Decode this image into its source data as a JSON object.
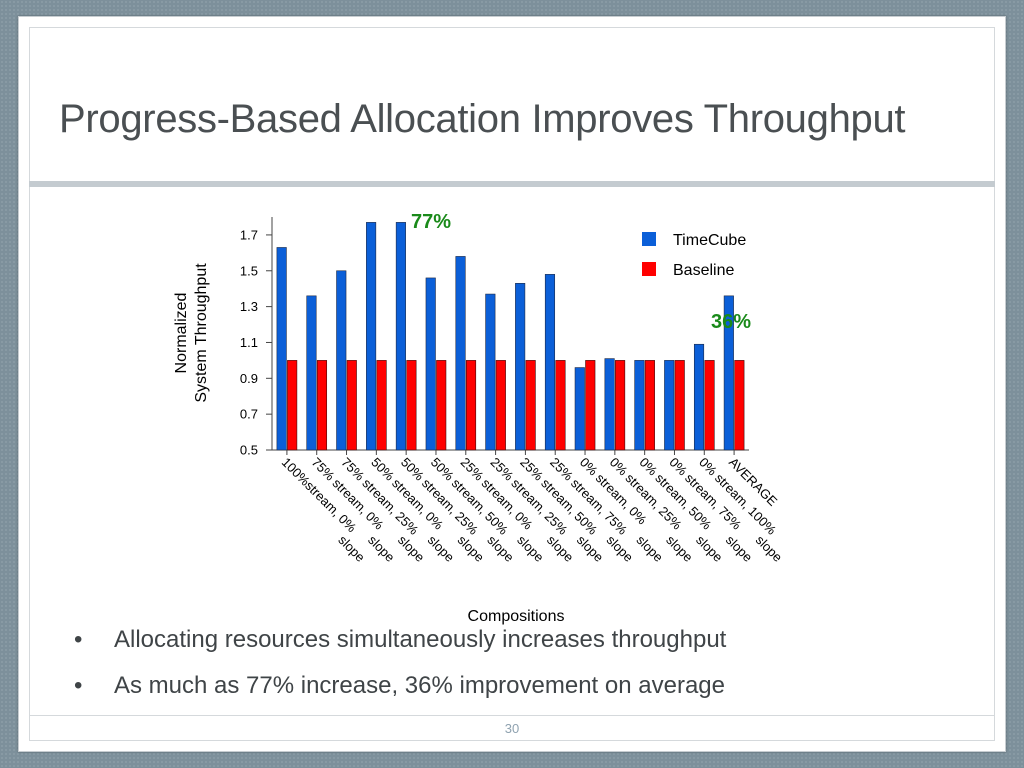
{
  "slide": {
    "title": "Progress-Based Allocation Improves Throughput",
    "bullets": [
      "Allocating resources simultaneously increases throughput",
      "As much as 77% increase, 36% improvement on average"
    ],
    "bullet_marker": "•",
    "page_number": "30"
  },
  "chart_data": {
    "type": "bar",
    "categories": [
      "100%stream, 0% slope",
      "75% stream, 0% slope",
      "75% stream, 25% slope",
      "50% stream, 0% slope",
      "50% stream, 25% slope",
      "50% stream, 50% slope",
      "25% stream, 0% slope",
      "25% stream, 25% slope",
      "25% stream, 50% slope",
      "25% stream, 75% slope",
      "0% stream, 0% slope",
      "0% stream, 25% slope",
      "0% stream, 50% slope",
      "0% stream, 75% slope",
      "0% stream, 100% slope",
      "AVERAGE"
    ],
    "series": [
      {
        "name": "TimeCube",
        "color": "#0b5fd8",
        "values": [
          1.63,
          1.36,
          1.5,
          1.77,
          1.77,
          1.46,
          1.58,
          1.37,
          1.43,
          1.48,
          0.96,
          1.01,
          1.0,
          1.0,
          1.09,
          1.36
        ]
      },
      {
        "name": "Baseline",
        "color": "#ff0000",
        "values": [
          1.0,
          1.0,
          1.0,
          1.0,
          1.0,
          1.0,
          1.0,
          1.0,
          1.0,
          1.0,
          1.0,
          1.0,
          1.0,
          1.0,
          1.0,
          1.0
        ]
      }
    ],
    "ylabel_lines": [
      "Normalized",
      "System Throughput"
    ],
    "xlabel": "Compositions",
    "ylim": [
      0.5,
      1.8
    ],
    "yticks": [
      0.5,
      0.7,
      0.9,
      1.1,
      1.3,
      1.5,
      1.7
    ],
    "legend_placement": "top-right",
    "annotations": [
      {
        "text": "77%",
        "color": "#1a8a1a",
        "near_category": 4
      },
      {
        "text": "36%",
        "color": "#1a8a1a",
        "near_category": 15
      }
    ],
    "grid": false
  }
}
